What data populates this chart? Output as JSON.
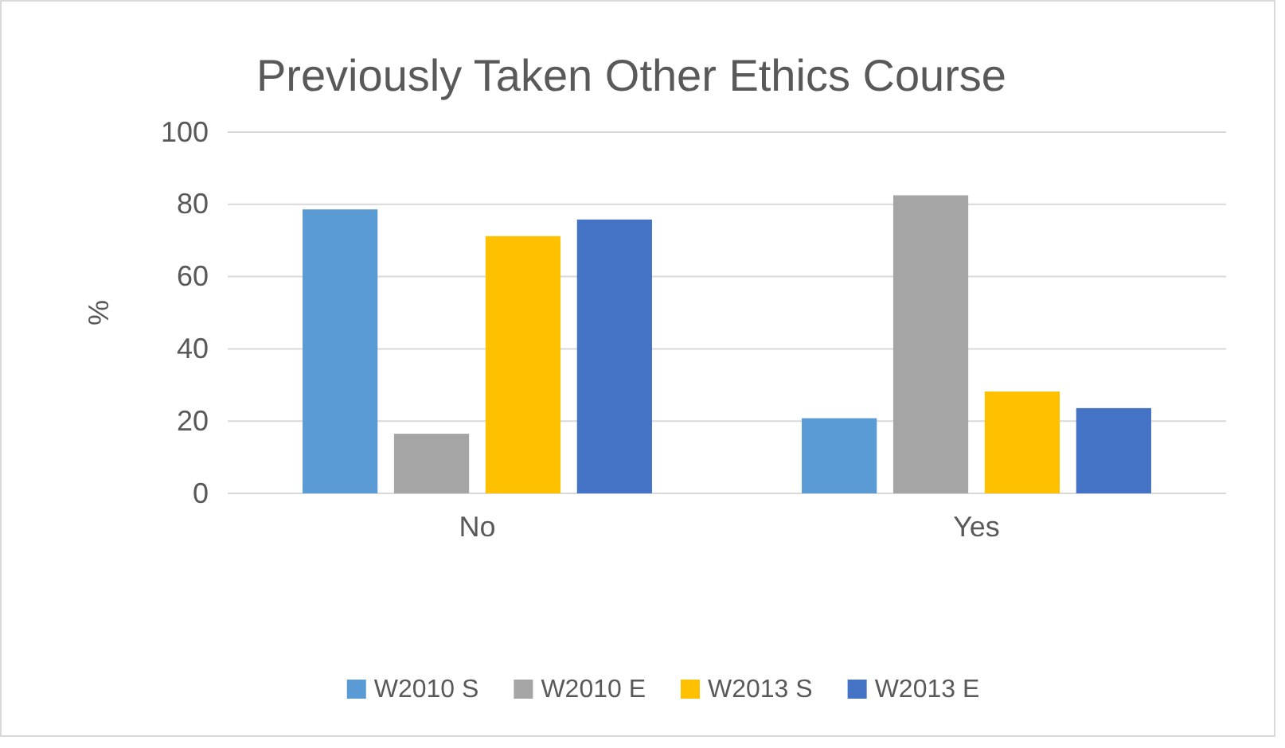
{
  "chart_data": {
    "type": "bar",
    "title": "Previously Taken Other Ethics Course",
    "ylabel": "%",
    "categories": [
      "No",
      "Yes"
    ],
    "series": [
      {
        "name": "W2010 S",
        "color": "#5b9bd5",
        "values": [
          78.6,
          20.8
        ]
      },
      {
        "name": "W2010 E",
        "color": "#a5a5a5",
        "values": [
          16.5,
          82.5
        ]
      },
      {
        "name": "W2013 S",
        "color": "#ffc000",
        "values": [
          71.2,
          28.2
        ]
      },
      {
        "name": "W2013 E",
        "color": "#4472c4",
        "values": [
          75.8,
          23.6
        ]
      }
    ],
    "ylim": [
      0,
      100
    ],
    "yticks": [
      0,
      20,
      40,
      60,
      80,
      100
    ],
    "grid": "y",
    "legend": "bottom"
  }
}
